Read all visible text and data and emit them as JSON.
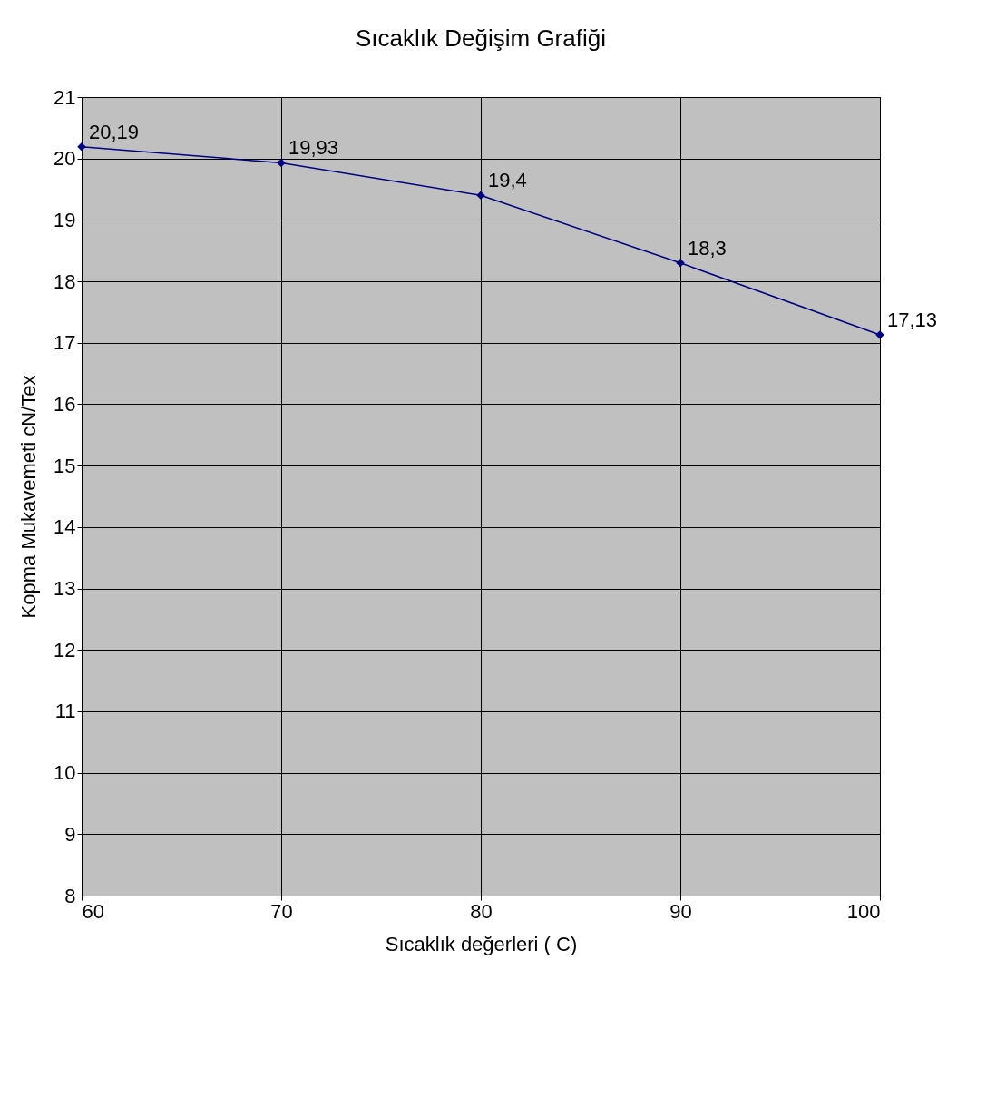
{
  "chart_data": {
    "type": "line",
    "title": "Sıcaklık Değişim Grafiği",
    "xlabel": "Sıcaklık değerleri ( C)",
    "ylabel": "Kopma Mukavemeti cN/Tex",
    "x": [
      60,
      70,
      80,
      90,
      100
    ],
    "series": [
      {
        "color": "#000080",
        "values": [
          20.19,
          19.93,
          19.4,
          18.3,
          17.13
        ],
        "value_labels": [
          "20,19",
          "19,93",
          "19,4",
          "18,3",
          "17,13"
        ]
      }
    ],
    "xlim": [
      60,
      100
    ],
    "xticks": [
      60,
      70,
      80,
      90,
      100
    ],
    "ylim": [
      8,
      21
    ],
    "yticks": [
      8,
      9,
      10,
      11,
      12,
      13,
      14,
      15,
      16,
      17,
      18,
      19,
      20,
      21
    ],
    "grid": true,
    "marker": "diamond",
    "line_style": "solid"
  }
}
